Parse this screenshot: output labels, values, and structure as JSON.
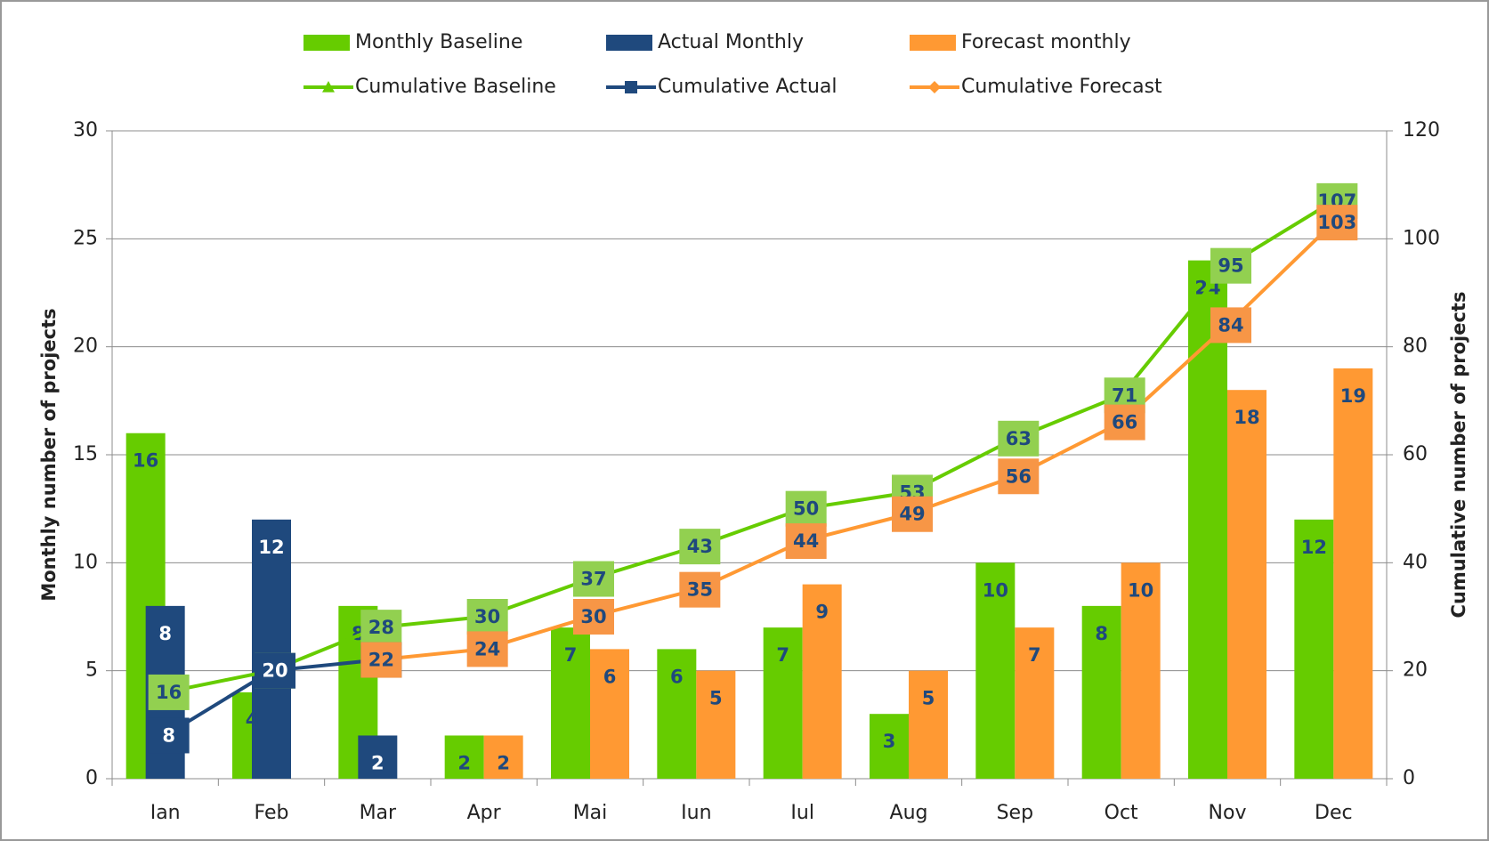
{
  "chart_data": {
    "type": "bar_line",
    "categories": [
      "Ian",
      "Feb",
      "Mar",
      "Apr",
      "Mai",
      "Iun",
      "Iul",
      "Aug",
      "Sep",
      "Oct",
      "Nov",
      "Dec"
    ],
    "y_label": "Monthly number of projects",
    "y2_label": "Cumulative number of projects",
    "ylim": [
      0,
      30
    ],
    "yticks": [
      0,
      5,
      10,
      15,
      20,
      25,
      30
    ],
    "y2lim": [
      0,
      120
    ],
    "y2ticks": [
      0,
      20,
      40,
      60,
      80,
      100,
      120
    ],
    "grid": true,
    "series": [
      {
        "name": "Monthly Baseline",
        "type": "bar",
        "color": "#66cc00",
        "slot": "left",
        "label_color": "#1f497d",
        "values": [
          16,
          4,
          8,
          2,
          7,
          6,
          7,
          3,
          10,
          8,
          24,
          12
        ]
      },
      {
        "name": "Actual Monthly",
        "type": "bar",
        "color": "#1f497d",
        "slot": "center",
        "label_color": "#ffffff",
        "values": [
          8,
          12,
          2,
          null,
          null,
          null,
          null,
          null,
          null,
          null,
          null,
          null
        ]
      },
      {
        "name": "Forecast monthly",
        "type": "bar",
        "color": "#ff9933",
        "slot": "right",
        "label_color": "#1f497d",
        "values": [
          null,
          null,
          null,
          2,
          6,
          5,
          9,
          5,
          7,
          10,
          18,
          19
        ]
      },
      {
        "name": "Cumulative Baseline",
        "type": "line",
        "axis": "y2",
        "color": "#66cc00",
        "marker": "triangle",
        "label_box": "#92d050",
        "label_color": "#1f497d",
        "values": [
          16,
          20,
          28,
          30,
          37,
          43,
          50,
          53,
          63,
          71,
          95,
          107
        ]
      },
      {
        "name": "Cumulative Actual",
        "type": "line",
        "axis": "y2",
        "color": "#1f497d",
        "marker": "square",
        "label_box": "#1f497d",
        "label_color": "#ffffff",
        "values": [
          8,
          20,
          22,
          null,
          null,
          null,
          null,
          null,
          null,
          null,
          null,
          null
        ]
      },
      {
        "name": "Cumulative Forecast",
        "type": "line",
        "axis": "y2",
        "color": "#ff9933",
        "marker": "diamond",
        "label_box": "#f79646",
        "label_color": "#1f497d",
        "values": [
          null,
          null,
          22,
          24,
          30,
          35,
          44,
          49,
          56,
          66,
          84,
          103
        ]
      }
    ]
  }
}
